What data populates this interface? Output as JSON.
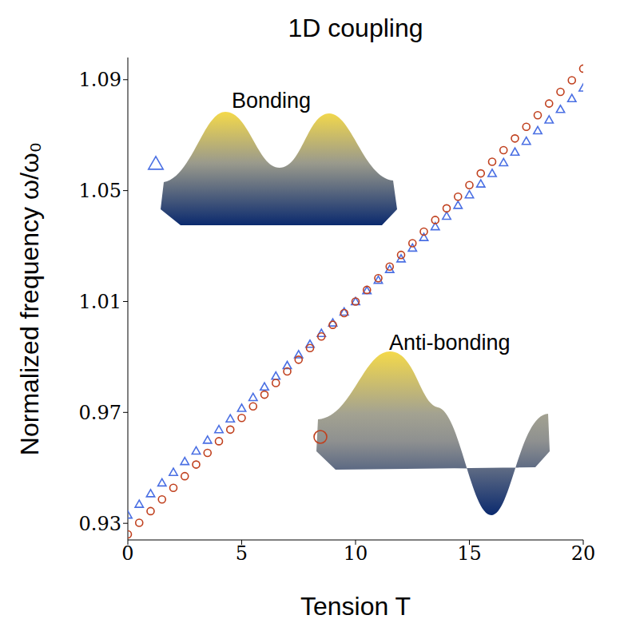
{
  "chart_data": {
    "type": "scatter",
    "title": "1D coupling",
    "x_label": "Tension T",
    "y_label": "Normalized frequency ω/ω₀",
    "x": [
      0,
      0.5,
      1,
      1.5,
      2,
      2.5,
      3,
      3.5,
      4,
      4.5,
      5,
      5.5,
      6,
      6.5,
      7,
      7.5,
      8,
      8.5,
      9,
      9.5,
      10,
      10.5,
      11,
      11.5,
      12,
      12.5,
      13,
      13.5,
      14,
      14.5,
      15,
      15.5,
      16,
      16.5,
      17,
      17.5,
      18,
      18.5,
      19,
      19.5,
      20
    ],
    "xlim": [
      0,
      20
    ],
    "xticks": [
      0,
      5,
      10,
      15,
      20
    ],
    "ylim": [
      0.924,
      1.098
    ],
    "yticks": [
      0.93,
      0.97,
      1.01,
      1.05,
      1.09
    ],
    "series": [
      {
        "name": "Bonding",
        "color": "#4a6fe3",
        "marker": "triangle",
        "values": [
          0.933,
          0.9369,
          0.9407,
          0.9446,
          0.9484,
          0.9523,
          0.9561,
          0.96,
          0.9638,
          0.9677,
          0.9715,
          0.9754,
          0.9792,
          0.9831,
          0.9869,
          0.9908,
          0.9946,
          0.9985,
          1.0023,
          1.0062,
          1.01,
          1.0139,
          1.0177,
          1.0216,
          1.0254,
          1.0293,
          1.0331,
          1.037,
          1.0408,
          1.0447,
          1.0485,
          1.0524,
          1.0562,
          1.0601,
          1.0639,
          1.0678,
          1.0716,
          1.0755,
          1.0793,
          1.0832,
          1.087
        ]
      },
      {
        "name": "Anti-bonding",
        "color": "#c0401e",
        "marker": "circle",
        "values": [
          0.926,
          0.9302,
          0.9344,
          0.9386,
          0.9428,
          0.947,
          0.9512,
          0.9554,
          0.9596,
          0.9638,
          0.968,
          0.9722,
          0.9764,
          0.9806,
          0.9848,
          0.989,
          0.9932,
          0.9974,
          1.0016,
          1.0058,
          1.01,
          1.0142,
          1.0184,
          1.0226,
          1.0268,
          1.031,
          1.0352,
          1.0394,
          1.0436,
          1.0478,
          1.052,
          1.0562,
          1.0604,
          1.0646,
          1.0688,
          1.073,
          1.0772,
          1.0814,
          1.0856,
          1.0898,
          1.094
        ]
      }
    ]
  }
}
